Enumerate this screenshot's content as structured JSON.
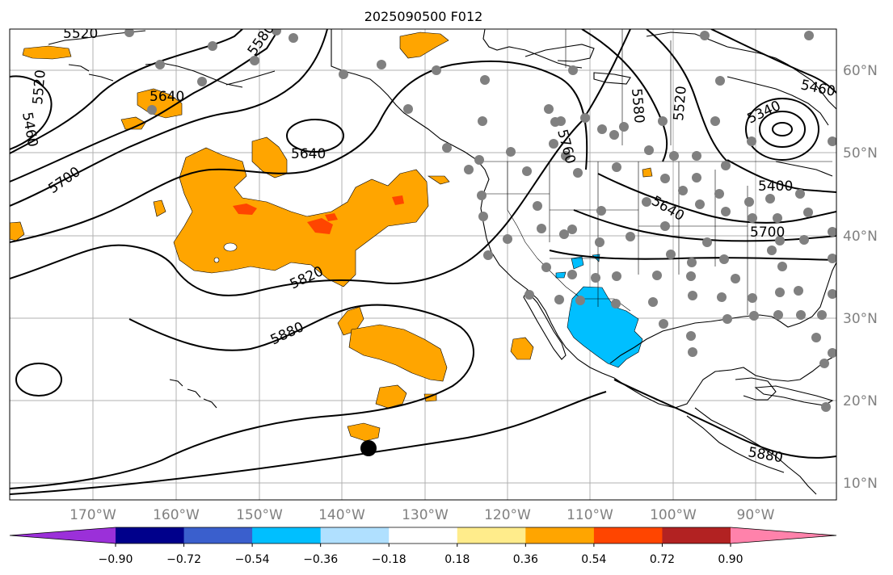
{
  "title": "2025090500 F012",
  "lon_labels": [
    "170°W",
    "160°W",
    "150°W",
    "140°W",
    "130°W",
    "120°W",
    "110°W",
    "100°W",
    "90°W"
  ],
  "lat_labels": [
    "60°N",
    "50°N",
    "40°N",
    "30°N",
    "20°N",
    "10°N"
  ],
  "contour_labels": [
    "5520",
    "5580",
    "5640",
    "5460",
    "5520",
    "5640",
    "5700",
    "5760",
    "5820",
    "5880",
    "5580",
    "5520",
    "5460",
    "5340",
    "5400",
    "5640",
    "5700",
    "5880"
  ],
  "colorbar": {
    "colors": [
      "#9b30d9",
      "#00008b",
      "#3a5fcd",
      "#00bfff",
      "#b0e0ff",
      "#ffffff",
      "#ffec8b",
      "#ffa500",
      "#ff4500",
      "#b22222",
      "#ff82ab"
    ],
    "tick_labels": [
      "−0.90",
      "−0.72",
      "−0.54",
      "−0.36",
      "−0.18",
      "0.18",
      "0.36",
      "0.54",
      "0.72",
      "0.90"
    ]
  },
  "colors": {
    "positive_fill": "#ffa500",
    "strong_positive_fill": "#ff4500",
    "negative_fill": "#00bfff",
    "station_dot": "#808080",
    "contour": "#000000",
    "grid": "#b0b0b0",
    "tick_label": "#808080"
  }
}
